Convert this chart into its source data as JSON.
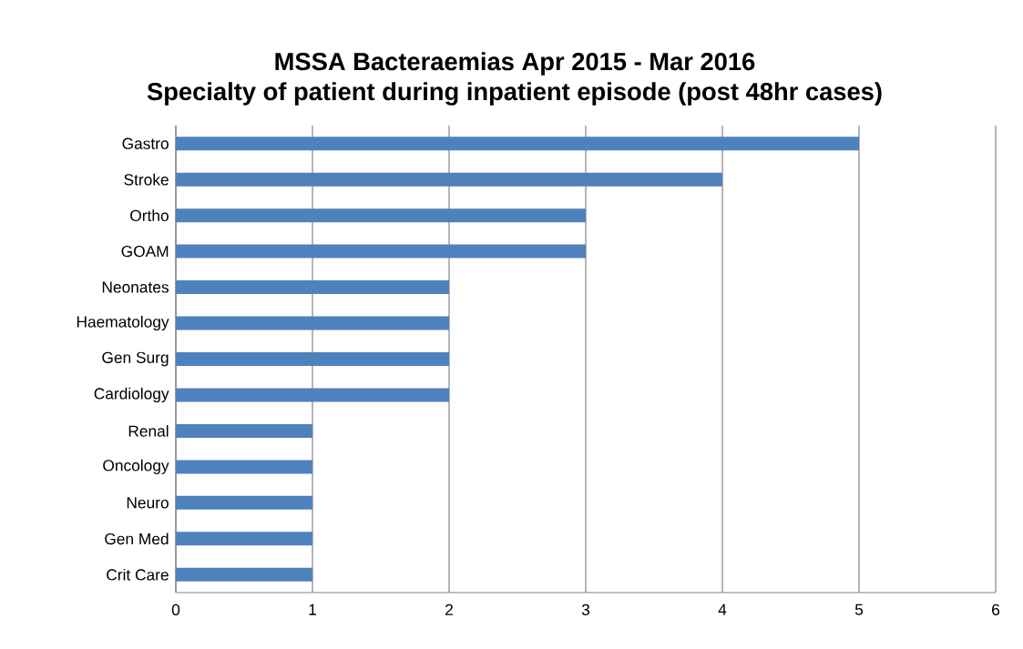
{
  "chart_data": {
    "type": "bar",
    "orientation": "horizontal",
    "title": "MSSA Bacteraemias Apr 2015 - Mar 2016",
    "subtitle": "Specialty of patient during inpatient episode (post 48hr cases)",
    "categories": [
      "Gastro",
      "Stroke",
      "Ortho",
      "GOAM",
      "Neonates",
      "Haematology",
      "Gen Surg",
      "Cardiology",
      "Renal",
      "Oncology",
      "Neuro",
      "Gen Med",
      "Crit Care"
    ],
    "values": [
      5,
      4,
      3,
      3,
      2,
      2,
      2,
      2,
      1,
      1,
      1,
      1,
      1
    ],
    "color": "#4f81bd",
    "xlim": [
      0,
      6
    ],
    "xticks": [
      0,
      1,
      2,
      3,
      4,
      5,
      6
    ],
    "grid": "x"
  }
}
